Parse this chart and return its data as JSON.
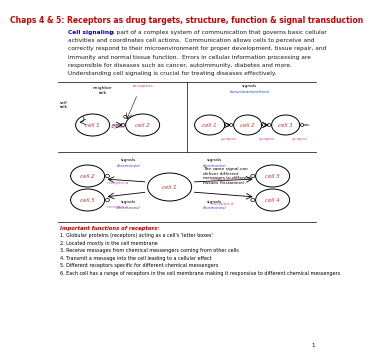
{
  "title": "Chaps 4 & 5: Receptors as drug targets, structure, function & signal transduction",
  "title_color": "#cc0000",
  "body_lines": [
    [
      "Cell signaling",
      " is part of a complex system of communication that governs basic cellular"
    ],
    [
      "",
      "activities and coordinates cell actions.  Communication allows cells to perceive and"
    ],
    [
      "",
      "correctly respond to their microenvironment for proper development, tissue repair, and"
    ],
    [
      "",
      "immunity and normal tissue function.  Errors in cellular information processing are"
    ],
    [
      "",
      "responsible for diseases such as cancer, autoimmunity, diabetes and more."
    ],
    [
      "",
      "Understanding cell signaling is crucial for treating diseases effectively."
    ]
  ],
  "cell_signaling_color": "#0000cc",
  "body_color": "#1a1a1a",
  "important_title": "Important functions of receptors:",
  "important_color": "#cc0000",
  "important_items": [
    "1. Globular proteins (receptors) acting as a cell's 'letter boxes'",
    "2. Located mostly in the cell membrane",
    "3. Receive messages from chemical messengers coming from other cells",
    "4. Transmit a message into the cell leading to a cellular effect",
    "5. Different receptors specific for different chemical messengers",
    "6. Each cell has a range of receptors in the cell membrane making it responsive to different chemical messengers"
  ],
  "page_number": "1",
  "background_color": "#ffffff",
  "magenta": "#cc44aa",
  "blue_label": "#2244cc"
}
